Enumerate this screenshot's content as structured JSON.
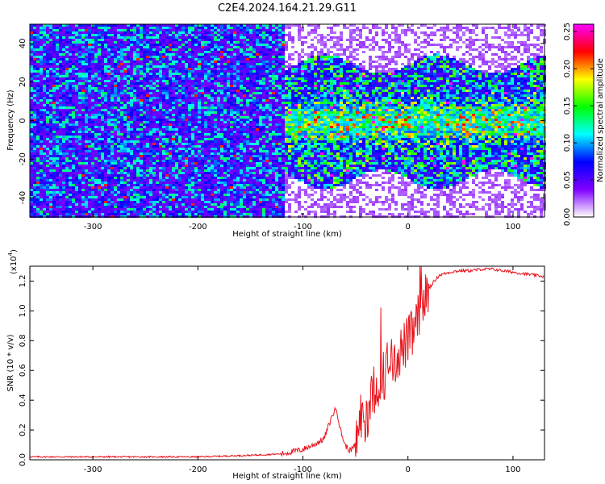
{
  "figure": {
    "title": "C2E4.2024.164.21.29.G11"
  },
  "chart_data": [
    {
      "type": "heatmap",
      "xlabel": "Height of straight line (km)",
      "ylabel": "Frequency (Hz)",
      "colorbar_label": "Normalized spectral amplitude",
      "xlim": [
        -360,
        130
      ],
      "ylim": [
        -50,
        50
      ],
      "xticks": [
        -300,
        -200,
        -100,
        0,
        100
      ],
      "yticks": [
        -40,
        -20,
        0,
        20,
        40
      ],
      "xtick_labels": [
        "-300",
        "-200",
        "-100",
        "0",
        "100"
      ],
      "ytick_labels": [
        "-40",
        "-20",
        "0",
        "20",
        "40"
      ],
      "colorbar_range": [
        0.0,
        0.26
      ],
      "colorbar_ticks": [
        0.0,
        0.05,
        0.1,
        0.15,
        0.2,
        0.25
      ],
      "colorbar_tick_labels": [
        "0.00",
        "0.05",
        "0.10",
        "0.15",
        "0.20",
        "0.25"
      ],
      "colormap": [
        "#ffffff",
        "#8000ff",
        "#0000ff",
        "#00ffff",
        "#00ff00",
        "#ffff00",
        "#ff0000",
        "#ff00ff"
      ],
      "description_regions": [
        {
          "x_range": [
            -360,
            -120
          ],
          "freq_range": [
            -50,
            50
          ],
          "level": "low, broadband"
        },
        {
          "x_range": [
            -120,
            130
          ],
          "freq_range": [
            -35,
            35
          ],
          "level": "higher, concentrated near 0 Hz"
        }
      ]
    },
    {
      "type": "line",
      "xlabel": "Height of straight line (km)",
      "ylabel": "SNR (10 * v/v)",
      "y_multiplier_label": "(x10",
      "y_multiplier_exp": "4",
      "xlim": [
        -360,
        130
      ],
      "ylim": [
        0,
        1.3
      ],
      "xticks": [
        -300,
        -200,
        -100,
        0,
        100
      ],
      "yticks": [
        0.0,
        0.2,
        0.4,
        0.6,
        0.8,
        1.0,
        1.2
      ],
      "xtick_labels": [
        "-300",
        "-200",
        "-100",
        "0",
        "100"
      ],
      "ytick_labels": [
        "0.0",
        "0.2",
        "0.4",
        "0.6",
        "0.8",
        "1.0",
        "1.2"
      ],
      "line_color": "#e8141c",
      "series": [
        {
          "x": [
            -360,
            -300,
            -250,
            -200,
            -150,
            -120,
            -100,
            -90,
            -80,
            -72,
            -68,
            -65,
            -60,
            -55,
            -50,
            -45,
            -40,
            -35,
            -30,
            -25,
            -20,
            -15,
            -10,
            -5,
            0,
            5,
            10,
            15,
            20,
            25,
            30,
            40,
            50,
            60,
            70,
            80,
            90,
            100,
            110,
            120,
            130
          ],
          "y": [
            0.02,
            0.02,
            0.02,
            0.02,
            0.03,
            0.04,
            0.07,
            0.1,
            0.14,
            0.3,
            0.35,
            0.22,
            0.1,
            0.06,
            0.1,
            0.3,
            0.25,
            0.45,
            0.5,
            0.55,
            0.6,
            0.65,
            0.7,
            0.75,
            0.8,
            0.85,
            0.95,
            1.05,
            1.15,
            1.2,
            1.24,
            1.26,
            1.27,
            1.27,
            1.28,
            1.28,
            1.27,
            1.26,
            1.25,
            1.24,
            1.23
          ]
        }
      ]
    }
  ]
}
